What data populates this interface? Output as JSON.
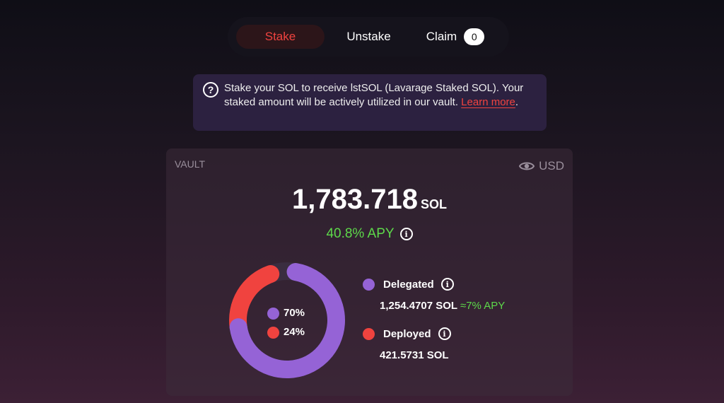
{
  "tabs": [
    {
      "label": "Stake",
      "active": true
    },
    {
      "label": "Unstake"
    },
    {
      "label": "Claim",
      "badge": "0"
    }
  ],
  "info": {
    "text": "Stake your SOL to receive lstSOL (Lavarage Staked SOL). Your staked amount will be actively utilized in our vault. ",
    "link": "Learn more",
    "end": "."
  },
  "vault": {
    "label": "VAULT",
    "currency_toggle": "USD",
    "amount": "1,783.718",
    "unit": "SOL",
    "apy": "40.8% APY",
    "chart": {
      "delegated_pct": "70%",
      "deployed_pct": "24%",
      "delegated_value": 70,
      "deployed_value": 24
    },
    "legend": [
      {
        "name": "Delegated",
        "value": "1,254.4707 SOL",
        "apy": "≈7% APY",
        "color": "#9563d6"
      },
      {
        "name": "Deployed",
        "value": "421.5731 SOL",
        "color": "#f0433f"
      }
    ]
  },
  "colors": {
    "accent": "#f0433f",
    "purple": "#9563d6",
    "green": "#5dd94a"
  }
}
